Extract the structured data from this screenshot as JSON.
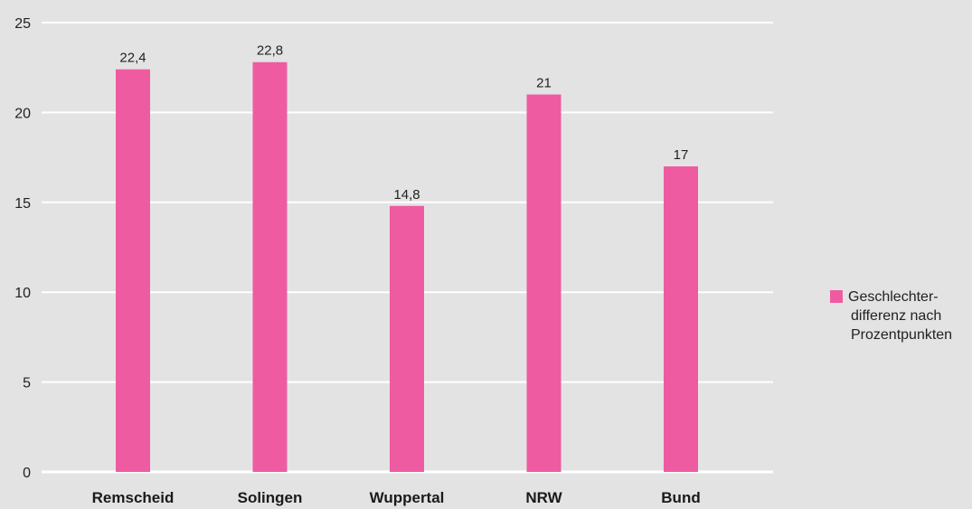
{
  "chart_data": {
    "type": "bar",
    "categories": [
      "Remscheid",
      "Solingen",
      "Wuppertal",
      "NRW",
      "Bund"
    ],
    "series": [
      {
        "name": "Geschlechter-differenz nach Prozentpunkten",
        "values": [
          22.4,
          22.8,
          14.8,
          21,
          17
        ],
        "value_labels": [
          "22,4",
          "22,8",
          "14,8",
          "21",
          "17"
        ]
      }
    ],
    "ylim": [
      0,
      25
    ],
    "yticks": [
      0,
      5,
      10,
      15,
      20,
      25
    ],
    "grid": true,
    "legend_position": "right",
    "colors": {
      "bar": "#ef5ba1",
      "grid": "#ffffff",
      "background": "#e3e3e4"
    }
  },
  "legend": {
    "lines": [
      "Geschlechter-",
      "differenz nach",
      "Prozentpunkten"
    ]
  }
}
